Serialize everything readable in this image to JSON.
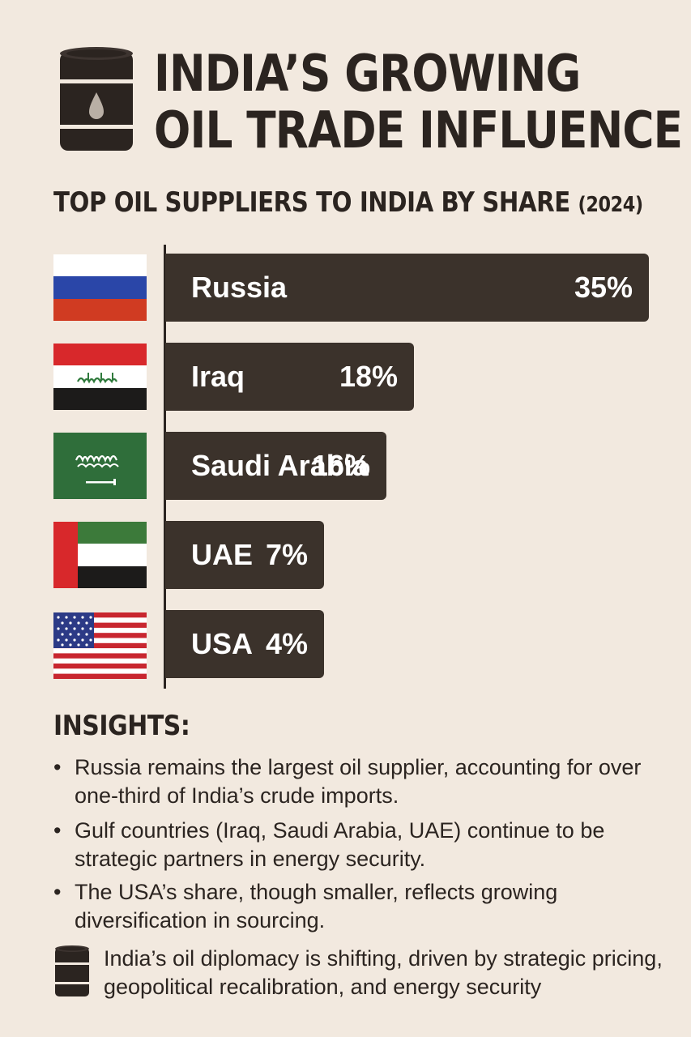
{
  "header": {
    "title_line1": "INDIA’S GROWING",
    "title_line2": "OIL TRADE INFLUENCE",
    "barrel_icon": "oil-barrel-icon"
  },
  "chart_data": {
    "type": "bar",
    "orientation": "horizontal",
    "title": "TOP OIL SUPPLIERS TO INDIA BY SHARE",
    "title_suffix": "(2024)",
    "categories": [
      "Russia",
      "Iraq",
      "Saudi Arabia",
      "UAE",
      "USA"
    ],
    "values": [
      35,
      18,
      16,
      7,
      4
    ],
    "value_labels": [
      "35%",
      "18%",
      "16%",
      "7%",
      "4%"
    ],
    "unit": "%",
    "flags": [
      "russia-flag-icon",
      "iraq-flag-icon",
      "saudi-arabia-flag-icon",
      "uae-flag-icon",
      "usa-flag-icon"
    ],
    "bar_color": "#3b322b",
    "grid": false,
    "legend": "none"
  },
  "insights": {
    "title": "INSIGHTS:",
    "items": [
      "Russia remains the largest oil supplier, accounting for over one-third of India’s crude imports.",
      "Gulf countries (Iraq, Saudi Arabia, UAE) continue to be strategic partners in energy security.",
      "The USA’s share, though smaller, reflects growing diversification in sourcing."
    ]
  },
  "footer": {
    "icon": "oil-barrel-icon",
    "text": "India’s oil diplomacy is shifting, driven by strategic pricing, geopolitical recalibration, and energy security"
  },
  "colors": {
    "background": "#f2e9df",
    "text": "#2b2420",
    "bar": "#3b322b"
  }
}
